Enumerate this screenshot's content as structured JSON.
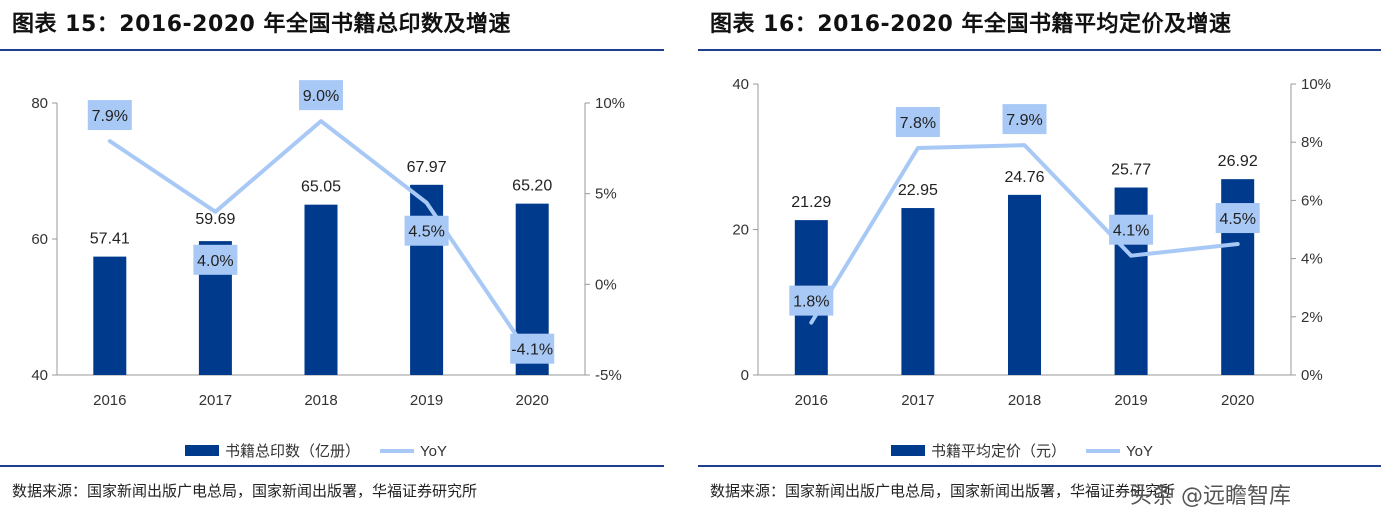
{
  "charts": {
    "left": {
      "title": "图表 15：2016-2020 年全国书籍总印数及增速",
      "source": "数据来源：国家新闻出版广电总局，国家新闻出版署，华福证券研究所"
    },
    "right": {
      "title": "图表 16：2016-2020 年全国书籍平均定价及增速",
      "source": "数据来源：国家新闻出版广电总局，国家新闻出版署，华福证券研究所"
    }
  },
  "watermark": "头条 @远瞻智库",
  "colors": {
    "bar": "#003a8c",
    "line": "#a8c8f5",
    "rule": "#1f3f8a"
  },
  "chart_data": [
    {
      "type": "bar",
      "title": "图表 15：2016-2020 年全国书籍总印数及增速",
      "categories": [
        "2016",
        "2017",
        "2018",
        "2019",
        "2020"
      ],
      "series": [
        {
          "name": "书籍总印数（亿册）",
          "type": "bar",
          "axis": "left",
          "values": [
            57.41,
            59.69,
            65.05,
            67.97,
            65.2
          ],
          "labels": [
            "57.41",
            "59.69",
            "65.05",
            "67.97",
            "65.20"
          ]
        },
        {
          "name": "YoY",
          "type": "line",
          "axis": "right",
          "values": [
            7.9,
            4.0,
            9.0,
            4.5,
            -4.1
          ],
          "labels": [
            "7.9%",
            "4.0%",
            "9.0%",
            "4.5%",
            "-4.1%"
          ]
        }
      ],
      "yleft": {
        "min": 40,
        "max": 80,
        "ticks": [
          "40",
          "60",
          "80"
        ]
      },
      "yright": {
        "min": -5,
        "max": 10,
        "ticks": [
          "-5%",
          "0%",
          "5%",
          "10%"
        ]
      },
      "legend": "bottom"
    },
    {
      "type": "bar",
      "title": "图表 16：2016-2020 年全国书籍平均定价及增速",
      "categories": [
        "2016",
        "2017",
        "2018",
        "2019",
        "2020"
      ],
      "series": [
        {
          "name": "书籍平均定价（元）",
          "type": "bar",
          "axis": "left",
          "values": [
            21.29,
            22.95,
            24.76,
            25.77,
            26.92
          ],
          "labels": [
            "21.29",
            "22.95",
            "24.76",
            "25.77",
            "26.92"
          ]
        },
        {
          "name": "YoY",
          "type": "line",
          "axis": "right",
          "values": [
            1.8,
            7.8,
            7.9,
            4.1,
            4.5
          ],
          "labels": [
            "1.8%",
            "7.8%",
            "7.9%",
            "4.1%",
            "4.5%"
          ]
        }
      ],
      "yleft": {
        "min": 0,
        "max": 40,
        "ticks": [
          "0",
          "20",
          "40"
        ]
      },
      "yright": {
        "min": 0,
        "max": 10,
        "ticks": [
          "0%",
          "2%",
          "4%",
          "6%",
          "8%",
          "10%"
        ]
      },
      "legend": "bottom"
    }
  ]
}
